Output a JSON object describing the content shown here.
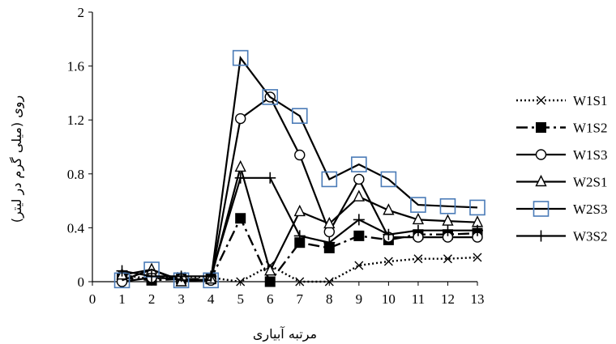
{
  "chart_data": {
    "type": "line",
    "title": "",
    "xlabel": "مرتبه آبیاری",
    "ylabel": "روی (میلی گرم در لیتر)",
    "xlim": [
      0,
      13
    ],
    "ylim": [
      0,
      2
    ],
    "x_ticks": [
      0,
      1,
      2,
      3,
      4,
      5,
      6,
      7,
      8,
      9,
      10,
      11,
      12,
      13
    ],
    "y_ticks": [
      "0",
      "0.4",
      "0.8",
      "1.2",
      "1.6",
      "2"
    ],
    "grid": false,
    "legend_position": "right",
    "x": [
      1,
      2,
      3,
      4,
      5,
      6,
      7,
      8,
      9,
      10,
      11,
      12,
      13
    ],
    "series": [
      {
        "name": "W1S1",
        "marker": "x",
        "line": "dotted",
        "color": "#000000",
        "values": [
          0.05,
          0.02,
          0.04,
          0.03,
          0.0,
          0.12,
          0.0,
          0.0,
          0.12,
          0.15,
          0.17,
          0.17,
          0.18
        ]
      },
      {
        "name": "W1S2",
        "marker": "filled-square",
        "line": "long-dash-dot",
        "color": "#000000",
        "values": [
          0.03,
          0.01,
          0.02,
          0.02,
          0.47,
          0.0,
          0.29,
          0.25,
          0.34,
          0.31,
          0.35,
          0.35,
          0.36
        ]
      },
      {
        "name": "W1S3",
        "marker": "circle",
        "line": "solid",
        "color": "#000000",
        "values": [
          0.0,
          0.03,
          0.02,
          0.01,
          1.21,
          1.37,
          0.94,
          0.37,
          0.76,
          0.33,
          0.33,
          0.33,
          0.33
        ]
      },
      {
        "name": "W2S1",
        "marker": "triangle",
        "line": "solid",
        "color": "#000000",
        "values": [
          0.05,
          0.09,
          0.0,
          0.02,
          0.85,
          0.08,
          0.52,
          0.43,
          0.63,
          0.53,
          0.46,
          0.45,
          0.44
        ]
      },
      {
        "name": "W2S3",
        "marker": "square",
        "line": "solid",
        "color": "#000000",
        "marker_color": "#4a7bb7",
        "values": [
          0.01,
          0.09,
          0.01,
          0.01,
          1.66,
          1.37,
          1.23,
          0.76,
          0.87,
          0.76,
          0.57,
          0.56,
          0.55
        ]
      },
      {
        "name": "W3S2",
        "marker": "plus",
        "line": "solid",
        "color": "#000000",
        "values": [
          0.08,
          0.04,
          0.04,
          0.04,
          0.77,
          0.77,
          0.34,
          0.29,
          0.46,
          0.35,
          0.38,
          0.38,
          0.38
        ]
      }
    ]
  }
}
